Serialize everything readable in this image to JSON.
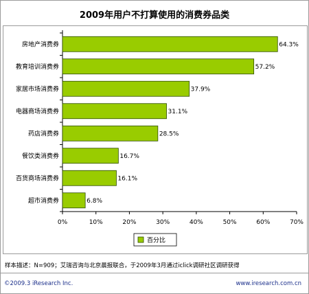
{
  "title": "2009年用户不打算使用的消费券品类",
  "note": "样本描述：N=909；艾瑞咨询与北京晨报联合，于2009年3月通过iclick调研社区调研获得",
  "footer": {
    "copyright": "©2009.3 iResearch Inc.",
    "website": "www.iresearch.com.cn"
  },
  "colors": {
    "bar_fill": "#99cc00",
    "bar_stroke": "#2d4a00",
    "text": "#000000",
    "footer_text": "#1a2e8a"
  },
  "chart_data": {
    "type": "bar",
    "orientation": "horizontal",
    "categories": [
      "房地产消费券",
      "教育培训消费券",
      "家居市场消费券",
      "电器商场消费券",
      "药店消费券",
      "餐饮类消费券",
      "百货商场消费券",
      "超市消费券"
    ],
    "values": [
      64.3,
      57.2,
      37.9,
      31.1,
      28.5,
      16.7,
      16.1,
      6.8
    ],
    "value_labels": [
      "64.3%",
      "57.2%",
      "37.9%",
      "31.1%",
      "28.5%",
      "16.7%",
      "16.1%",
      "6.8%"
    ],
    "xlim": [
      0,
      70
    ],
    "xticks": [
      0,
      10,
      20,
      30,
      40,
      50,
      60,
      70
    ],
    "xtick_labels": [
      "0%",
      "10%",
      "20%",
      "30%",
      "40%",
      "50%",
      "60%",
      "70%"
    ],
    "series": [
      {
        "name": "百分比"
      }
    ],
    "legend": "bottom-center",
    "grid": false
  }
}
